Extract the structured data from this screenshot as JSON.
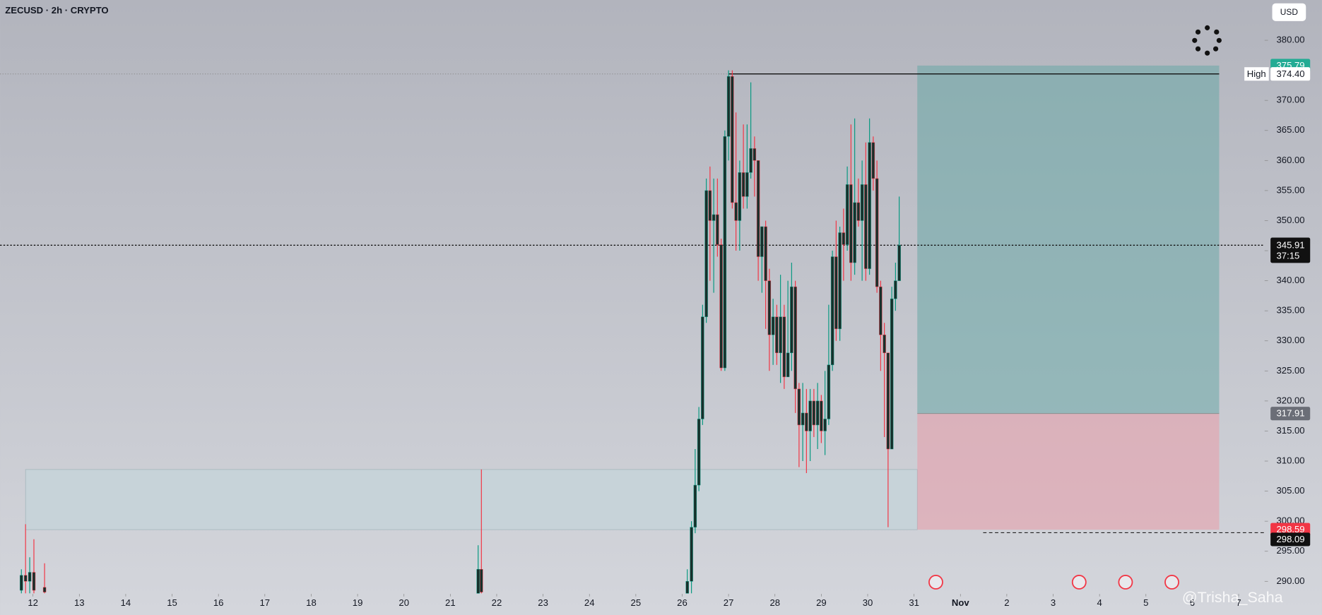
{
  "chart_data": {
    "type": "candlestick",
    "title": "ZECUSD · 2h · CRYPTO",
    "currency": "USD",
    "watermark": "@Trisha_Saha",
    "up_color": "#089981",
    "down_color": "#f23645",
    "body_color": "#17302b",
    "x": [
      11.75,
      11.84,
      11.93,
      12.02,
      12.25,
      21.6,
      21.67,
      26.11,
      26.2,
      26.28,
      26.36,
      26.44,
      26.52,
      26.6,
      26.68,
      26.76,
      26.84,
      26.92,
      27.0,
      27.08,
      27.16,
      27.24,
      27.32,
      27.4,
      27.48,
      27.56,
      27.64,
      27.72,
      27.8,
      27.88,
      27.96,
      28.04,
      28.12,
      28.2,
      28.28,
      28.36,
      28.44,
      28.52,
      28.6,
      28.68,
      28.76,
      28.84,
      28.92,
      29.0,
      29.08,
      29.16,
      29.24,
      29.32,
      29.4,
      29.48,
      29.56,
      29.64,
      29.72,
      29.8,
      29.88,
      29.96,
      30.04,
      30.12,
      30.2,
      30.28,
      30.36,
      30.44,
      30.52,
      30.6,
      30.68
    ],
    "open": [
      288.5,
      291,
      290,
      291.5,
      289,
      288,
      292,
      288,
      290,
      299,
      306,
      317,
      334,
      355,
      350,
      351,
      346,
      325.5,
      364,
      374,
      353,
      350,
      358,
      354,
      358,
      362,
      360,
      344,
      349,
      340,
      331,
      334,
      328,
      334,
      324,
      328,
      339,
      322,
      316,
      318,
      315,
      320,
      316,
      320,
      315,
      317,
      326,
      344,
      332,
      348,
      346,
      356,
      343,
      353,
      350,
      356,
      342,
      363,
      357,
      339,
      331,
      328,
      312,
      337,
      340
    ],
    "high": [
      292,
      299.5,
      294,
      297,
      293,
      296,
      308.6,
      292,
      300,
      312,
      319,
      336,
      357,
      359,
      357,
      357,
      347,
      365,
      375,
      375,
      368,
      360,
      366,
      366,
      373,
      364,
      360,
      349,
      350,
      342,
      337,
      336,
      341,
      336,
      340,
      343,
      340,
      323,
      323,
      322,
      322,
      322,
      323,
      321,
      325,
      336,
      345,
      350,
      349,
      352,
      359,
      366,
      367,
      357,
      360,
      363,
      367,
      364,
      360,
      340,
      333,
      328,
      339,
      343,
      354
    ],
    "low": [
      288,
      288,
      288,
      288,
      288,
      288,
      288,
      288,
      288,
      298,
      305,
      316,
      333,
      340,
      338,
      344,
      325,
      325,
      360,
      352,
      345,
      345,
      352,
      352,
      357,
      354,
      340,
      338,
      332,
      325,
      326,
      326,
      323,
      322,
      324,
      325,
      318,
      309,
      310,
      308,
      310,
      314,
      312,
      313,
      311,
      316,
      325,
      330,
      330,
      340,
      345,
      340,
      341,
      349,
      340,
      340,
      341,
      355,
      338,
      325,
      314,
      299,
      312,
      335,
      340
    ],
    "close": [
      291,
      290,
      291.5,
      288.5,
      288.2,
      292,
      288.2,
      290,
      299,
      306,
      317,
      334,
      355,
      350,
      351,
      346,
      325.5,
      364,
      374,
      353,
      350,
      358,
      354,
      358,
      362,
      360,
      344,
      349,
      340,
      331,
      334,
      328,
      334,
      324,
      328,
      339,
      322,
      316,
      318,
      315,
      320,
      316,
      320,
      315,
      317,
      326,
      344,
      332,
      348,
      346,
      356,
      343,
      353,
      350,
      356,
      342,
      363,
      357,
      339,
      331,
      328,
      312,
      337,
      340,
      345.91
    ],
    "xlim": [
      11.29,
      38.56
    ],
    "ylim": [
      287.9,
      386.7
    ],
    "xticks": [
      12,
      13,
      14,
      15,
      16,
      17,
      18,
      19,
      20,
      21,
      22,
      23,
      24,
      25,
      26,
      27,
      28,
      29,
      30,
      31,
      {
        "value": 32,
        "label": "Nov"
      },
      {
        "value": 33,
        "label": "2"
      },
      {
        "value": 34,
        "label": "3"
      },
      {
        "value": 35,
        "label": "4"
      },
      {
        "value": 36,
        "label": "5"
      },
      {
        "value": 37,
        "label": "6"
      },
      {
        "value": 38,
        "label": "7"
      }
    ],
    "yticks": [
      {
        "value": 290,
        "label": "290.00"
      },
      {
        "value": 295,
        "label": "295.00"
      },
      {
        "value": 300,
        "label": "300.00"
      },
      {
        "value": 305,
        "label": "305.00"
      },
      {
        "value": 310,
        "label": "310.00"
      },
      {
        "value": 315,
        "label": "315.00"
      },
      {
        "value": 320,
        "label": "320.00"
      },
      {
        "value": 325,
        "label": "325.00"
      },
      {
        "value": 330,
        "label": "330.00"
      },
      {
        "value": 335,
        "label": "335.00"
      },
      {
        "value": 340,
        "label": "340.00"
      },
      {
        "value": 345,
        "label": "345.00"
      },
      {
        "value": 350,
        "label": "350.00"
      },
      {
        "value": 355,
        "label": "355.00"
      },
      {
        "value": 360,
        "label": "360.00"
      },
      {
        "value": 365,
        "label": "365.00"
      },
      {
        "value": 370,
        "label": "370.00"
      },
      {
        "value": 375,
        "label": "375.00"
      },
      {
        "value": 380,
        "label": "380.00"
      }
    ],
    "zone": {
      "x": [
        11.84,
        31.07
      ],
      "y": [
        298.6,
        308.6
      ]
    },
    "position": {
      "x": [
        31.07,
        37.58
      ],
      "entry": 317.91,
      "target": 375.79,
      "stop": 298.59
    },
    "high_level": {
      "name": "High",
      "value": 374.4,
      "label": "374.40",
      "x": [
        27.0,
        37.58
      ]
    },
    "last": {
      "value": 345.91,
      "countdown": "37:15"
    },
    "low_mark": {
      "value": 298.09,
      "x": 32.49
    }
  }
}
